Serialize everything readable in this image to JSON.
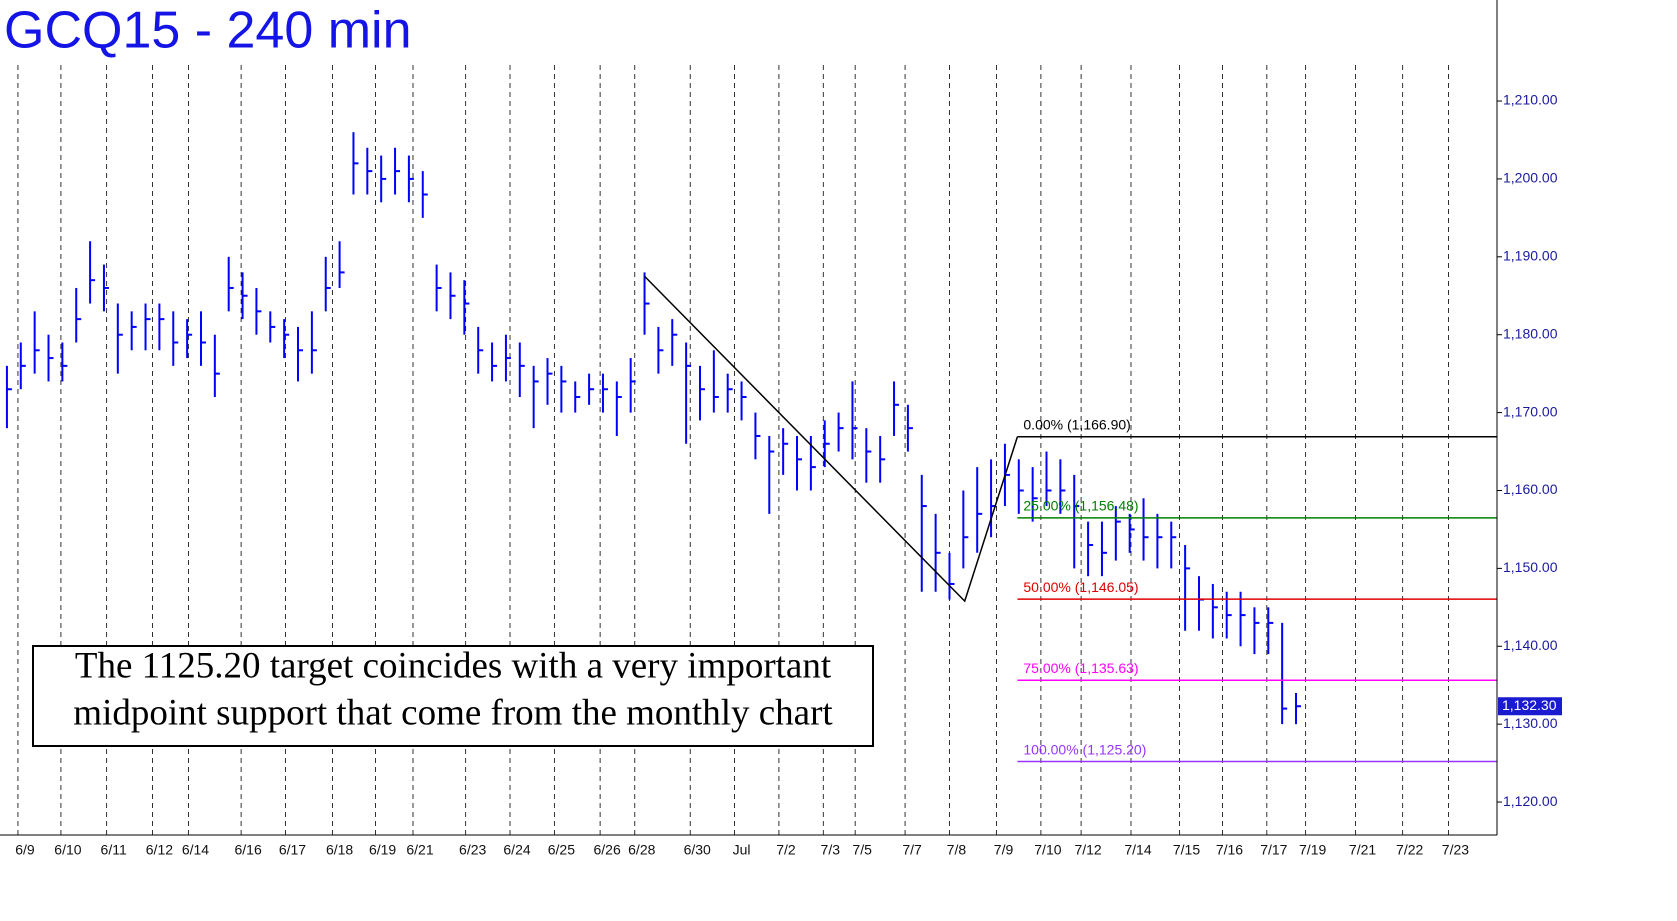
{
  "chart_data": {
    "type": "ohlc",
    "title": "GCQ15 - 240 min",
    "color": "#0000ff",
    "high": [
      1176,
      1179,
      1183,
      1180,
      1179,
      1186,
      1192,
      1189,
      1184,
      1183,
      1184,
      1184,
      1183,
      1182,
      1183,
      1180,
      1190,
      1188,
      1186,
      1183,
      1182,
      1181,
      1183,
      1190,
      1192,
      1206,
      1204,
      1203,
      1204,
      1203,
      1201,
      1189,
      1188,
      1187,
      1181,
      1179,
      1180,
      1179,
      1176,
      1177,
      1176,
      1174,
      1175,
      1175,
      1174,
      1177,
      1188,
      1181,
      1182,
      1179,
      1176,
      1178,
      1175,
      1174,
      1170,
      1167,
      1168,
      1167,
      1167,
      1169,
      1170,
      1174,
      1168,
      1167,
      1174,
      1171,
      1162,
      1157,
      1152,
      1160,
      1163,
      1164,
      1166,
      1164,
      1163,
      1165,
      1164,
      1162,
      1156,
      1156,
      1158,
      1157,
      1159,
      1157,
      1156,
      1153,
      1149,
      1148,
      1147,
      1147,
      1145,
      1145,
      1143,
      1134
    ],
    "low": [
      1168,
      1173,
      1175,
      1174,
      1174,
      1179,
      1184,
      1183,
      1175,
      1178,
      1178,
      1178,
      1176,
      1177,
      1176,
      1172,
      1183,
      1182,
      1180,
      1179,
      1177,
      1174,
      1175,
      1183,
      1186,
      1198,
      1198,
      1197,
      1198,
      1197,
      1195,
      1183,
      1182,
      1180,
      1175,
      1174,
      1174,
      1172,
      1168,
      1171,
      1170,
      1170,
      1171,
      1170,
      1167,
      1170,
      1180,
      1175,
      1176,
      1166,
      1169,
      1170,
      1170,
      1169,
      1164,
      1157,
      1162,
      1160,
      1160,
      1163,
      1165,
      1164,
      1161,
      1161,
      1167,
      1165,
      1147,
      1147,
      1146,
      1150,
      1152,
      1154,
      1158,
      1157,
      1156,
      1158,
      1157,
      1150,
      1149,
      1149,
      1151,
      1152,
      1151,
      1150,
      1150,
      1142,
      1142,
      1141,
      1141,
      1140,
      1139,
      1139,
      1130,
      1130
    ],
    "close": [
      1173,
      1176,
      1178,
      1177,
      1176,
      1182,
      1187,
      1186,
      1180,
      1181,
      1182,
      1182,
      1179,
      1180,
      1179,
      1175,
      1186,
      1185,
      1183,
      1181,
      1180,
      1178,
      1178,
      1186,
      1188,
      1202,
      1201,
      1200,
      1201,
      1200,
      1198,
      1186,
      1185,
      1184,
      1178,
      1176,
      1177,
      1176,
      1174,
      1175,
      1174,
      1172,
      1173,
      1173,
      1172,
      1174,
      1184,
      1178,
      1180,
      1176,
      1173,
      1172,
      1173,
      1172,
      1167,
      1165,
      1166,
      1164,
      1163,
      1166,
      1168,
      1168,
      1165,
      1164,
      1171,
      1168,
      1158,
      1152,
      1148,
      1154,
      1157,
      1158,
      1162,
      1160,
      1159,
      1160,
      1160,
      1158,
      1153,
      1152,
      1156,
      1155,
      1154,
      1154,
      1154,
      1150,
      1146,
      1145,
      1144,
      1144,
      1143,
      1143,
      1132,
      1132.3
    ],
    "ylim": [
      1115.77,
      1222.97
    ],
    "yticks": [
      {
        "value": 1120,
        "label": "1,120.00"
      },
      {
        "value": 1130,
        "label": "1,130.00"
      },
      {
        "value": 1140,
        "label": "1,140.00"
      },
      {
        "value": 1150,
        "label": "1,150.00"
      },
      {
        "value": 1160,
        "label": "1,160.00"
      },
      {
        "value": 1170,
        "label": "1,170.00"
      },
      {
        "value": 1180,
        "label": "1,180.00"
      },
      {
        "value": 1190,
        "label": "1,190.00"
      },
      {
        "value": 1200,
        "label": "1,200.00"
      },
      {
        "value": 1210,
        "label": "1,210.00"
      }
    ],
    "xlim": [
      0,
      108
    ],
    "xticks": [
      {
        "value": 1.8,
        "label": "6/9"
      },
      {
        "value": 4.9,
        "label": "6/10"
      },
      {
        "value": 8.2,
        "label": "6/11"
      },
      {
        "value": 11.5,
        "label": "6/12"
      },
      {
        "value": 14.1,
        "label": "6/14"
      },
      {
        "value": 17.9,
        "label": "6/16"
      },
      {
        "value": 21.1,
        "label": "6/17"
      },
      {
        "value": 24.5,
        "label": "6/18"
      },
      {
        "value": 27.6,
        "label": "6/19"
      },
      {
        "value": 30.3,
        "label": "6/21"
      },
      {
        "value": 34.1,
        "label": "6/23"
      },
      {
        "value": 37.3,
        "label": "6/24"
      },
      {
        "value": 40.5,
        "label": "6/25"
      },
      {
        "value": 43.8,
        "label": "6/26"
      },
      {
        "value": 46.3,
        "label": "6/28"
      },
      {
        "value": 50.3,
        "label": "6/30"
      },
      {
        "value": 53.5,
        "label": "Jul"
      },
      {
        "value": 56.7,
        "label": "7/2"
      },
      {
        "value": 59.9,
        "label": "7/3"
      },
      {
        "value": 62.2,
        "label": "7/5"
      },
      {
        "value": 65.8,
        "label": "7/7"
      },
      {
        "value": 69.0,
        "label": "7/8"
      },
      {
        "value": 72.4,
        "label": "7/9"
      },
      {
        "value": 75.6,
        "label": "7/10"
      },
      {
        "value": 78.5,
        "label": "7/12"
      },
      {
        "value": 82.1,
        "label": "7/14"
      },
      {
        "value": 85.6,
        "label": "7/15"
      },
      {
        "value": 88.7,
        "label": "7/16"
      },
      {
        "value": 91.9,
        "label": "7/17"
      },
      {
        "value": 94.7,
        "label": "7/19"
      },
      {
        "value": 98.3,
        "label": "7/21"
      },
      {
        "value": 101.7,
        "label": "7/22"
      },
      {
        "value": 105.0,
        "label": "7/23"
      }
    ],
    "grid": true,
    "last_price": {
      "value": 1132.3,
      "label": "1,132.30"
    },
    "swing": {
      "x": [
        46.5,
        69.6,
        73.4
      ],
      "values": [
        1187.5,
        1145.8,
        1166.9
      ],
      "color": "#000000"
    },
    "fib_levels": [
      {
        "value": 1166.9,
        "label": "0.00% (1,166.90)",
        "color": "#000000"
      },
      {
        "value": 1156.48,
        "label": "25.00% (1,156.48)",
        "color": "#008000"
      },
      {
        "value": 1146.05,
        "label": "50.00% (1,146.05)",
        "color": "#e00000"
      },
      {
        "value": 1135.63,
        "label": "75.00% (1,135.63)",
        "color": "#ff00ff"
      },
      {
        "value": 1125.2,
        "label": "100.00% (1,125.20)",
        "color": "#9933ff"
      }
    ],
    "annotation": [
      "The 1125.20 target coincides with a very important",
      "midpoint support that come from the monthly chart"
    ]
  }
}
